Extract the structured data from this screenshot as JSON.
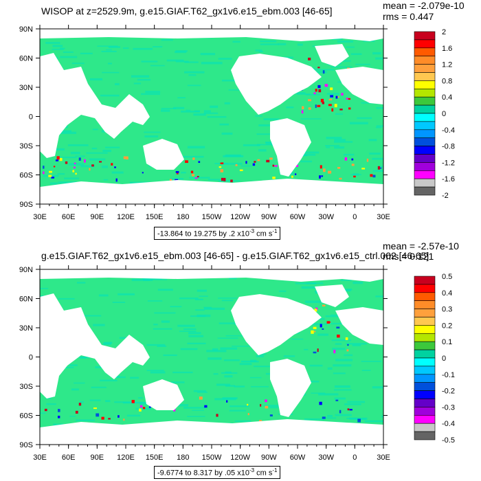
{
  "chart_data": [
    {
      "type": "heatmap",
      "title": "WISOP at z=2529.9m, g.e15.GIAF.T62_gx1v6.e15_ebm.003 [46-65]",
      "stats": {
        "mean": "mean = -2.079e-10",
        "rms": "rms = 0.447"
      },
      "xlabel": "",
      "ylabel": "",
      "x_tick_labels": [
        "30E",
        "60E",
        "90E",
        "120E",
        "150E",
        "180",
        "150W",
        "120W",
        "90W",
        "60W",
        "30W",
        "0",
        "30E"
      ],
      "y_tick_labels": [
        "90N",
        "60N",
        "30N",
        "0",
        "30S",
        "60S",
        "90S"
      ],
      "colorbar_labels": [
        "2",
        "1.6",
        "1.2",
        "0.8",
        "0.4",
        "0",
        "-0.4",
        "-0.8",
        "-1.2",
        "-1.6",
        "-2"
      ],
      "contour_info": {
        "prefix": "-13.864 to 19.275 by .2 x10",
        "exp": "-3",
        "unit": " cm s",
        "unit_exp": "-1"
      },
      "colors": [
        "#c8001e",
        "#ff0000",
        "#ff5a00",
        "#ff8c28",
        "#ffa03c",
        "#ffc850",
        "#ffff00",
        "#b4e600",
        "#3cc83c",
        "#00d2a0",
        "#00ffff",
        "#00c8ff",
        "#0096ff",
        "#0050dc",
        "#0000ff",
        "#6400c8",
        "#a000dc",
        "#ff00ff",
        "#c8c8c8",
        "#646464"
      ]
    },
    {
      "type": "heatmap",
      "title": "g.e15.GIAF.T62_gx1v6.e15_ebm.003 [46-65] - g.e15.GIAF.T62_gx1v6.e15_ctrl.002 [46-65]",
      "stats": {
        "mean": "mean = -2.57e-10",
        "rms": "rms = 0.121"
      },
      "xlabel": "",
      "ylabel": "",
      "x_tick_labels": [
        "30E",
        "60E",
        "90E",
        "120E",
        "150E",
        "180",
        "150W",
        "120W",
        "90W",
        "60W",
        "30W",
        "0",
        "30E"
      ],
      "y_tick_labels": [
        "90N",
        "60N",
        "30N",
        "0",
        "30S",
        "60S",
        "90S"
      ],
      "colorbar_labels": [
        "0.5",
        "0.4",
        "0.3",
        "0.2",
        "0.1",
        "0",
        "-0.1",
        "-0.2",
        "-0.3",
        "-0.4",
        "-0.5"
      ],
      "contour_info": {
        "prefix": "-9.6774 to 8.317 by .05 x10",
        "exp": "-3",
        "unit": " cm s",
        "unit_exp": "-1"
      },
      "colors": [
        "#c8001e",
        "#ff0000",
        "#ff5a00",
        "#ff8c28",
        "#ffa03c",
        "#ffc850",
        "#ffff00",
        "#b4e600",
        "#3cc83c",
        "#00d2a0",
        "#00ffff",
        "#00c8ff",
        "#0096ff",
        "#0050dc",
        "#0000ff",
        "#6400c8",
        "#a000dc",
        "#ff00ff",
        "#c8c8c8",
        "#646464"
      ]
    }
  ],
  "theme": {
    "ocean_base": "#2ee88a",
    "ocean_alt": "#00e0c0",
    "land": "#ffffff"
  }
}
